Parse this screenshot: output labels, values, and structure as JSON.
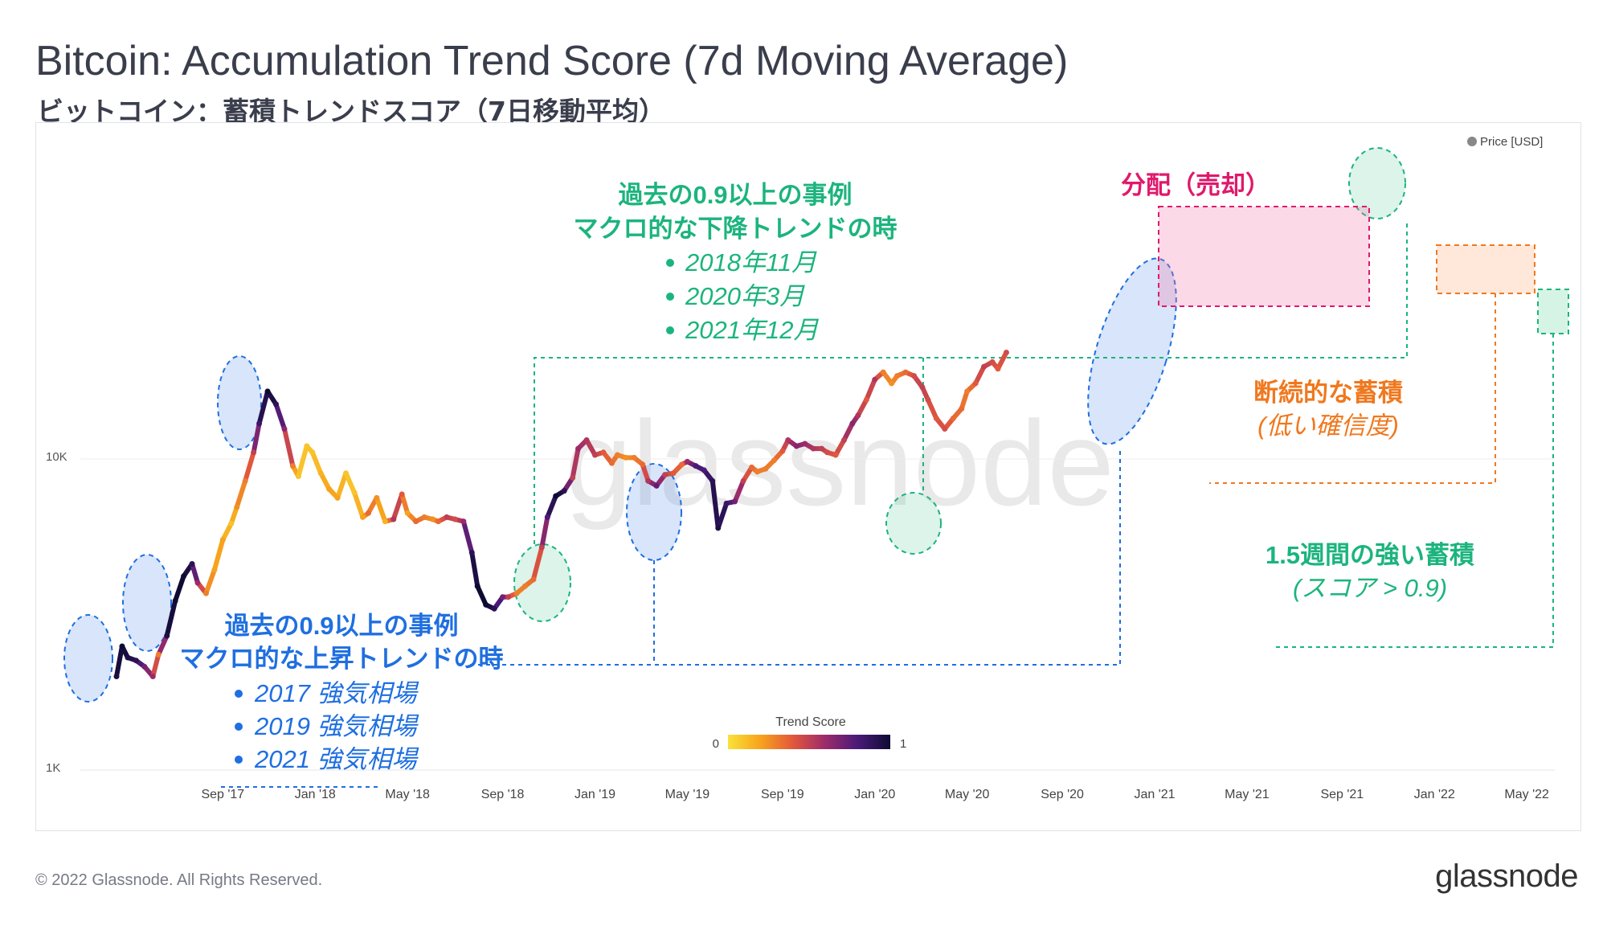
{
  "title": "Bitcoin: Accumulation Trend Score (7d Moving Average)",
  "subtitle": "ビットコイン：蓄積トレンドスコア（7日移動平均）",
  "footer": "© 2022 Glassnode. All Rights Reserved.",
  "brand": "glassnode",
  "chart_data": {
    "type": "line",
    "title": "Bitcoin: Accumulation Trend Score (7d Moving Average)",
    "legend": {
      "label": "Price [USD]",
      "color": "#888888",
      "placement": "top-right"
    },
    "watermark": "glassnode",
    "y_scale": "log",
    "ylim": [
      1000,
      100000
    ],
    "y_ticks": [
      {
        "value": 1000,
        "label": "1K"
      },
      {
        "value": 10000,
        "label": "10K"
      }
    ],
    "xlim": [
      2017.29,
      2022.43
    ],
    "x_ticks": [
      {
        "t": 2017.67,
        "label": "Sep '17"
      },
      {
        "t": 2018.0,
        "label": "Jan '18"
      },
      {
        "t": 2018.33,
        "label": "May '18"
      },
      {
        "t": 2018.67,
        "label": "Sep '18"
      },
      {
        "t": 2019.0,
        "label": "Jan '19"
      },
      {
        "t": 2019.33,
        "label": "May '19"
      },
      {
        "t": 2019.67,
        "label": "Sep '19"
      },
      {
        "t": 2020.0,
        "label": "Jan '20"
      },
      {
        "t": 2020.33,
        "label": "May '20"
      },
      {
        "t": 2020.67,
        "label": "Sep '20"
      },
      {
        "t": 2021.0,
        "label": "Jan '21"
      },
      {
        "t": 2021.33,
        "label": "May '21"
      },
      {
        "t": 2021.67,
        "label": "Sep '21"
      },
      {
        "t": 2022.0,
        "label": "Jan '22"
      },
      {
        "t": 2022.33,
        "label": "May '22"
      }
    ],
    "colorbar": {
      "title": "Trend Score",
      "min_label": "0",
      "max_label": "1",
      "stops": [
        "#f9e23a",
        "#f7a31c",
        "#e2583b",
        "#9c2a6b",
        "#4a1a78",
        "#0e0b33"
      ]
    },
    "series": [
      {
        "name": "BTC Price (USD) colored by Trend Score",
        "points": [
          [
            2017.29,
            2000,
            0.95
          ],
          [
            2017.31,
            2500,
            1
          ],
          [
            2017.33,
            2300,
            0.95
          ],
          [
            2017.36,
            2250,
            0.9
          ],
          [
            2017.39,
            2150,
            0.7
          ],
          [
            2017.42,
            2000,
            0.6
          ],
          [
            2017.44,
            2350,
            0.3
          ],
          [
            2017.47,
            2700,
            0.95
          ],
          [
            2017.5,
            3500,
            1
          ],
          [
            2017.53,
            4200,
            1
          ],
          [
            2017.56,
            4600,
            0.9
          ],
          [
            2017.58,
            4000,
            0.6
          ],
          [
            2017.61,
            3700,
            0.3
          ],
          [
            2017.64,
            4400,
            0.2
          ],
          [
            2017.67,
            5500,
            0.2
          ],
          [
            2017.7,
            6200,
            0.1
          ],
          [
            2017.72,
            7000,
            0.25
          ],
          [
            2017.75,
            8500,
            0.3
          ],
          [
            2017.78,
            10500,
            0.5
          ],
          [
            2017.8,
            13000,
            0.85
          ],
          [
            2017.83,
            16500,
            1
          ],
          [
            2017.86,
            15000,
            0.9
          ],
          [
            2017.89,
            12500,
            0.65
          ],
          [
            2017.92,
            9500,
            0.3
          ],
          [
            2017.94,
            8800,
            0.1
          ],
          [
            2017.97,
            11000,
            0.1
          ],
          [
            2017.99,
            10500,
            0.1
          ],
          [
            2018.02,
            9000,
            0.15
          ],
          [
            2018.05,
            8000,
            0.2
          ],
          [
            2018.08,
            7500,
            0.2
          ],
          [
            2018.11,
            9000,
            0.1
          ],
          [
            2018.14,
            7800,
            0.1
          ],
          [
            2018.17,
            6500,
            0.2
          ],
          [
            2018.19,
            6700,
            0.35
          ],
          [
            2018.22,
            7500,
            0.25
          ],
          [
            2018.25,
            6300,
            0.15
          ],
          [
            2018.28,
            6400,
            0.55
          ],
          [
            2018.31,
            7700,
            0.4
          ],
          [
            2018.33,
            6700,
            0.2
          ],
          [
            2018.36,
            6300,
            0.35
          ],
          [
            2018.39,
            6500,
            0.3
          ],
          [
            2018.42,
            6400,
            0.25
          ],
          [
            2018.44,
            6300,
            0.35
          ],
          [
            2018.47,
            6500,
            0.5
          ],
          [
            2018.5,
            6400,
            0.45
          ],
          [
            2018.53,
            6300,
            0.6
          ],
          [
            2018.56,
            5000,
            0.9
          ],
          [
            2018.58,
            3900,
            1
          ],
          [
            2018.61,
            3400,
            1
          ],
          [
            2018.64,
            3300,
            0.9
          ],
          [
            2018.67,
            3600,
            0.7
          ],
          [
            2018.69,
            3600,
            0.5
          ],
          [
            2018.72,
            3700,
            0.3
          ],
          [
            2018.75,
            3900,
            0.3
          ],
          [
            2018.78,
            4100,
            0.35
          ],
          [
            2018.81,
            5200,
            0.5
          ],
          [
            2018.83,
            6500,
            0.8
          ],
          [
            2018.86,
            7600,
            1
          ],
          [
            2018.89,
            7900,
            0.9
          ],
          [
            2018.92,
            8700,
            0.5
          ],
          [
            2018.94,
            10800,
            0.6
          ],
          [
            2018.97,
            11500,
            0.55
          ],
          [
            2019.0,
            10300,
            0.5
          ],
          [
            2019.03,
            10500,
            0.4
          ],
          [
            2019.06,
            9700,
            0.35
          ],
          [
            2019.08,
            10300,
            0.3
          ],
          [
            2019.11,
            10100,
            0.25
          ],
          [
            2019.14,
            10100,
            0.3
          ],
          [
            2019.17,
            9600,
            0.35
          ],
          [
            2019.19,
            8500,
            0.55
          ],
          [
            2019.22,
            8200,
            0.75
          ],
          [
            2019.25,
            8900,
            0.5
          ],
          [
            2019.28,
            9000,
            0.4
          ],
          [
            2019.31,
            9600,
            0.35
          ],
          [
            2019.33,
            9800,
            0.6
          ],
          [
            2019.36,
            9500,
            0.8
          ],
          [
            2019.39,
            9200,
            0.8
          ],
          [
            2019.42,
            8500,
            0.9
          ],
          [
            2019.44,
            6000,
            0.95
          ],
          [
            2019.47,
            7200,
            0.85
          ],
          [
            2019.5,
            7300,
            0.7
          ],
          [
            2019.53,
            8500,
            0.5
          ],
          [
            2019.56,
            9400,
            0.35
          ],
          [
            2019.58,
            9100,
            0.3
          ],
          [
            2019.61,
            9300,
            0.3
          ],
          [
            2019.64,
            9900,
            0.3
          ],
          [
            2019.67,
            10600,
            0.4
          ],
          [
            2019.69,
            11500,
            0.55
          ],
          [
            2019.72,
            11000,
            0.65
          ],
          [
            2019.75,
            11200,
            0.6
          ],
          [
            2019.78,
            10800,
            0.55
          ],
          [
            2019.81,
            10800,
            0.5
          ],
          [
            2019.83,
            10500,
            0.45
          ],
          [
            2019.86,
            10300,
            0.4
          ],
          [
            2019.89,
            11500,
            0.5
          ],
          [
            2019.92,
            13000,
            0.65
          ],
          [
            2019.94,
            13800,
            0.55
          ],
          [
            2019.97,
            15500,
            0.4
          ],
          [
            2020.0,
            18000,
            0.55
          ],
          [
            2020.03,
            19000,
            0.3
          ],
          [
            2020.06,
            17500,
            0.25
          ],
          [
            2020.08,
            18500,
            0.3
          ],
          [
            2020.11,
            19000,
            0.35
          ],
          [
            2020.14,
            18500,
            0.45
          ],
          [
            2020.17,
            17000,
            0.5
          ],
          [
            2020.19,
            15500,
            0.45
          ],
          [
            2020.22,
            13500,
            0.4
          ],
          [
            2020.25,
            12500,
            0.45
          ],
          [
            2020.28,
            13500,
            0.35
          ],
          [
            2020.31,
            14500,
            0.35
          ],
          [
            2020.33,
            16500,
            0.3
          ],
          [
            2020.36,
            17500,
            0.4
          ],
          [
            2020.39,
            19800,
            0.5
          ],
          [
            2020.42,
            20500,
            0.45
          ],
          [
            2020.44,
            19500,
            0.4
          ],
          [
            2020.47,
            22000,
            0.45
          ]
        ]
      }
    ],
    "annotations": {
      "uptrend_heading": "過去の0.9以上の事例",
      "uptrend_sub": "マクロ的な上昇トレンドの時",
      "uptrend_items": [
        "2017 強気相場",
        "2019 強気相場",
        "2021 強気相場"
      ],
      "downtrend_heading": "過去の0.9以上の事例",
      "downtrend_sub": "マクロ的な下降トレンドの時",
      "downtrend_items": [
        "2018年11月",
        "2020年3月",
        "2021年12月"
      ],
      "distribution": "分配（売却）",
      "intermittent": "断続的な蓄積",
      "intermittent_sub": "(低い確信度)",
      "strong": "1.5週間の強い蓄積",
      "strong_sub": "(スコア > 0.9)"
    },
    "colors": {
      "blue": "#1f6fe0",
      "green": "#1cb47e",
      "pink": "#e0196b",
      "orange": "#f0781e"
    }
  }
}
